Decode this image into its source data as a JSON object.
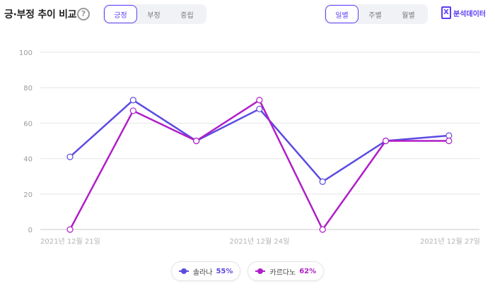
{
  "header": {
    "title": "긍·부정 추이 비교",
    "help_icon": "?",
    "sentiment_tabs": [
      {
        "label": "긍정",
        "active": true
      },
      {
        "label": "부정",
        "active": false
      },
      {
        "label": "중립",
        "active": false
      }
    ],
    "period_tabs": [
      {
        "label": "일별",
        "active": true
      },
      {
        "label": "주별",
        "active": false
      },
      {
        "label": "월별",
        "active": false
      }
    ],
    "export_icon": "excel-icon",
    "export_label": "분석데이터"
  },
  "colors": {
    "accent": "#5b3df5",
    "series1": "#5b4be0",
    "series2": "#b01ec8"
  },
  "chart_data": {
    "type": "line",
    "x": [
      "2021-12-21",
      "2021-12-22",
      "2021-12-23",
      "2021-12-24",
      "2021-12-25",
      "2021-12-26",
      "2021-12-27"
    ],
    "x_tick_labels": [
      "2021년 12월 21일",
      "2021년 12월 24일",
      "2021년 12월 27일"
    ],
    "ylim": [
      0,
      100
    ],
    "y_ticks": [
      0,
      20,
      40,
      60,
      80,
      100
    ],
    "grid": true,
    "legend_position": "bottom-center",
    "series": [
      {
        "name": "솔라나",
        "percent": "55%",
        "values": [
          41,
          73,
          50,
          68,
          27,
          50,
          53
        ]
      },
      {
        "name": "카르다노",
        "percent": "62%",
        "values": [
          0,
          67,
          50,
          73,
          0,
          50,
          50
        ]
      }
    ]
  }
}
